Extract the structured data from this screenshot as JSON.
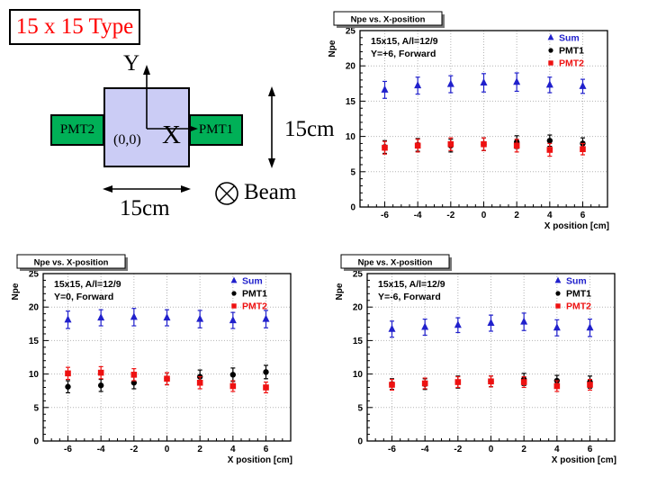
{
  "slide": {
    "title": "15 x 15 Type",
    "title_color": "#ff0000"
  },
  "diagram": {
    "square_color": "#cbccf5",
    "pmt_color": "#00b057",
    "pmt1_label": "PMT1",
    "pmt2_label": "PMT2",
    "origin_label": "(0,0)",
    "x_axis_label": "X",
    "y_axis_label": "Y",
    "width_label": "15cm",
    "height_label": "15cm",
    "beam_label": "Beam",
    "beam_icon": "crossed-circle-icon"
  },
  "chart_data": [
    {
      "type": "scatter",
      "title": "Npe vs. X-position",
      "ylabel": "Npe",
      "xlabel": "X position [cm]",
      "annotation": [
        "15x15, A/l=12/9",
        "Y=+6, Forward"
      ],
      "xlim": [
        -7.5,
        7.5
      ],
      "ylim": [
        0,
        25
      ],
      "xticks": [
        -6,
        -4,
        -2,
        0,
        2,
        4,
        6
      ],
      "yticks": [
        0,
        5,
        10,
        15,
        20,
        25
      ],
      "grid": true,
      "legend_position": "top-right",
      "x": [
        -6,
        -4,
        -2,
        0,
        2,
        4,
        6
      ],
      "series": [
        {
          "name": "Sum",
          "marker": "triangle",
          "color": "#2020cc",
          "values": [
            16.6,
            17.2,
            17.4,
            17.6,
            17.7,
            17.3,
            17.1
          ],
          "errors": [
            1.2,
            1.2,
            1.2,
            1.3,
            1.3,
            1.1,
            1.0
          ]
        },
        {
          "name": "PMT1",
          "marker": "circle",
          "color": "#000000",
          "values": [
            8.5,
            8.8,
            8.7,
            8.9,
            9.2,
            9.4,
            9.0
          ],
          "errors": [
            0.9,
            0.9,
            0.9,
            0.9,
            0.9,
            0.8,
            0.8
          ]
        },
        {
          "name": "PMT2",
          "marker": "square",
          "color": "#ee1111",
          "values": [
            8.4,
            8.7,
            8.9,
            8.9,
            8.7,
            8.1,
            8.2
          ],
          "errors": [
            0.9,
            0.9,
            0.9,
            0.9,
            0.9,
            0.9,
            0.8
          ]
        }
      ]
    },
    {
      "type": "scatter",
      "title": "Npe vs. X-position",
      "ylabel": "Npe",
      "xlabel": "X position [cm]",
      "annotation": [
        "15x15, A/l=12/9",
        "Y=0, Forward"
      ],
      "xlim": [
        -7.5,
        7.5
      ],
      "ylim": [
        0,
        25
      ],
      "xticks": [
        -6,
        -4,
        -2,
        0,
        2,
        4,
        6
      ],
      "yticks": [
        0,
        5,
        10,
        15,
        20,
        25
      ],
      "grid": true,
      "legend_position": "top-right",
      "x": [
        -6,
        -4,
        -2,
        0,
        2,
        4,
        6
      ],
      "series": [
        {
          "name": "Sum",
          "marker": "triangle",
          "color": "#2020cc",
          "values": [
            18.1,
            18.4,
            18.5,
            18.4,
            18.2,
            18.0,
            18.2
          ],
          "errors": [
            1.3,
            1.2,
            1.3,
            1.2,
            1.3,
            1.2,
            1.3
          ]
        },
        {
          "name": "PMT1",
          "marker": "circle",
          "color": "#000000",
          "values": [
            8.1,
            8.3,
            8.7,
            9.3,
            9.6,
            9.9,
            10.3
          ],
          "errors": [
            0.9,
            0.9,
            0.9,
            0.9,
            1.0,
            1.0,
            1.0
          ]
        },
        {
          "name": "PMT2",
          "marker": "square",
          "color": "#ee1111",
          "values": [
            10.1,
            10.2,
            9.9,
            9.3,
            8.7,
            8.2,
            8.0
          ],
          "errors": [
            0.9,
            0.9,
            0.9,
            0.9,
            0.9,
            0.8,
            0.8
          ]
        }
      ]
    },
    {
      "type": "scatter",
      "title": "Npe vs. X-position",
      "ylabel": "Npe",
      "xlabel": "X position [cm]",
      "annotation": [
        "15x15, A/l=12/9",
        "Y=-6, Forward"
      ],
      "xlim": [
        -7.5,
        7.5
      ],
      "ylim": [
        0,
        25
      ],
      "xticks": [
        -6,
        -4,
        -2,
        0,
        2,
        4,
        6
      ],
      "yticks": [
        0,
        5,
        10,
        15,
        20,
        25
      ],
      "grid": true,
      "legend_position": "top-right",
      "x": [
        -6,
        -4,
        -2,
        0,
        2,
        4,
        6
      ],
      "series": [
        {
          "name": "Sum",
          "marker": "triangle",
          "color": "#2020cc",
          "values": [
            16.7,
            17.0,
            17.3,
            17.6,
            17.8,
            16.9,
            16.9
          ],
          "errors": [
            1.2,
            1.2,
            1.1,
            1.2,
            1.3,
            1.2,
            1.3
          ]
        },
        {
          "name": "PMT1",
          "marker": "circle",
          "color": "#000000",
          "values": [
            8.5,
            8.5,
            8.8,
            8.9,
            9.2,
            9.0,
            8.8
          ],
          "errors": [
            0.8,
            0.8,
            0.9,
            0.8,
            0.9,
            0.8,
            0.9
          ]
        },
        {
          "name": "PMT2",
          "marker": "square",
          "color": "#ee1111",
          "values": [
            8.4,
            8.6,
            8.8,
            8.9,
            8.8,
            8.2,
            8.4
          ],
          "errors": [
            0.8,
            0.8,
            0.8,
            0.8,
            0.8,
            0.8,
            0.8
          ]
        }
      ]
    }
  ]
}
